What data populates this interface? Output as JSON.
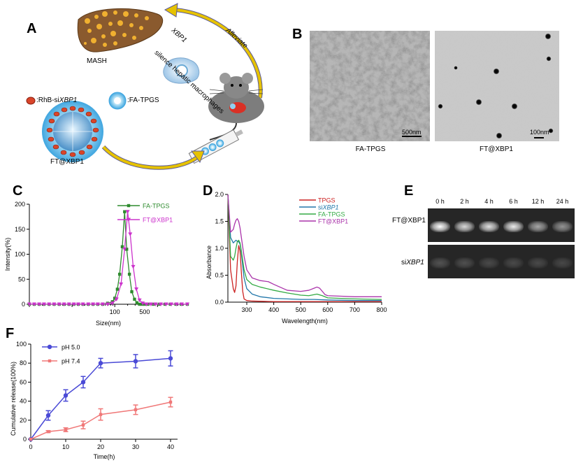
{
  "panels": {
    "A": "A",
    "B": "B",
    "C": "C",
    "D": "D",
    "E": "E",
    "F": "F"
  },
  "schematic": {
    "mash": "MASH",
    "silence": "silence hepatic macrophages",
    "xbp1": "XBP1",
    "alleviate": "Alleviate",
    "legend_rhb": ":RhB-si",
    "legend_rhb_italic": "XBP1",
    "legend_fa": ":FA-TPGS",
    "ft_label": "FT@XBP1",
    "colors": {
      "liver": "#8a5a2e",
      "arrow": "#e6c200",
      "rhb": "#d9452a",
      "micelle": "#8fd0f0"
    }
  },
  "tem": {
    "left_caption": "FA-TPGS",
    "right_caption": "FT@XBP1",
    "left_scale": "500nm",
    "right_scale": "100nm"
  },
  "gel": {
    "row1_label": "FT@XBP1",
    "row2_label_prefix": "si",
    "row2_label_italic": "XBP1",
    "timepoints": [
      "0 h",
      "2 h",
      "4 h",
      "6 h",
      "12 h",
      "24 h"
    ],
    "row1_intensity": [
      1.0,
      0.8,
      0.85,
      0.9,
      0.55,
      0.45
    ],
    "row2_intensity": [
      0.12,
      0.1,
      0.07,
      0.07,
      0.07,
      0.06
    ]
  },
  "chart_data": [
    {
      "panel": "C",
      "type": "line",
      "xlabel": "Size(nm)",
      "ylabel": "Intensity(%)",
      "xscale": "log",
      "xlim": [
        1,
        5000
      ],
      "ylim": [
        0,
        200
      ],
      "xticks": [
        100,
        500
      ],
      "yticks": [
        0,
        50,
        100,
        150,
        200
      ],
      "legend": "top-right",
      "series": [
        {
          "name": "FA-TPGS",
          "color": "#2e8b2e",
          "marker": "square",
          "x": [
            1,
            1.3,
            1.7,
            2.2,
            2.9,
            3.8,
            5,
            6.5,
            8.5,
            11,
            14,
            18,
            24,
            31,
            40,
            52,
            68,
            88,
            100,
            115,
            130,
            150,
            170,
            190,
            220,
            250,
            290,
            330,
            380,
            440,
            500,
            600,
            800,
            1100,
            1500,
            2000,
            2700,
            3600,
            5000
          ],
          "y": [
            0,
            0,
            0,
            0,
            0,
            0,
            0,
            0,
            0,
            0,
            0,
            0,
            0,
            0,
            0,
            0,
            2,
            5,
            12,
            30,
            60,
            115,
            185,
            110,
            60,
            25,
            10,
            3,
            0,
            0,
            0,
            0,
            0,
            0,
            0,
            0,
            0,
            0,
            0
          ]
        },
        {
          "name": "FT@XBP1",
          "color": "#cc33cc",
          "marker": "triangle-down",
          "x": [
            1,
            1.3,
            1.7,
            2.2,
            2.9,
            3.8,
            5,
            6.5,
            8.5,
            11,
            14,
            18,
            24,
            31,
            40,
            52,
            68,
            88,
            110,
            140,
            170,
            200,
            230,
            270,
            320,
            380,
            450,
            550,
            700,
            900,
            1200,
            1600,
            2100,
            2800,
            3700,
            5000
          ],
          "y": [
            0,
            0,
            0,
            0,
            0,
            0,
            0,
            0,
            0,
            0,
            0,
            0,
            0,
            0,
            0,
            0,
            0,
            2,
            10,
            40,
            110,
            185,
            140,
            75,
            30,
            8,
            2,
            0,
            0,
            0,
            0,
            0,
            0,
            0,
            0,
            0
          ]
        }
      ]
    },
    {
      "panel": "D",
      "type": "line",
      "xlabel": "Wavelength(nm)",
      "ylabel": "Absorbance",
      "xlim": [
        230,
        800
      ],
      "ylim": [
        0,
        2.0
      ],
      "xticks": [
        300,
        400,
        500,
        600,
        700,
        800
      ],
      "yticks": [
        0.0,
        0.5,
        1.0,
        1.5,
        2.0
      ],
      "legend": "top-right",
      "series": [
        {
          "name": "TPGS",
          "color": "#cc2222",
          "x": [
            230,
            240,
            250,
            255,
            260,
            265,
            270,
            275,
            280,
            285,
            290,
            300,
            320,
            400,
            500,
            600,
            700,
            800
          ],
          "y": [
            2.0,
            0.6,
            0.25,
            0.18,
            0.3,
            0.75,
            1.05,
            0.95,
            0.55,
            0.2,
            0.06,
            0.03,
            0.02,
            0.01,
            0.01,
            0.01,
            0.01,
            0.01
          ]
        },
        {
          "name": "siXBP1",
          "color": "#2277aa",
          "x": [
            230,
            240,
            250,
            260,
            265,
            270,
            275,
            280,
            290,
            300,
            320,
            350,
            400,
            450,
            500,
            550,
            600,
            700,
            800
          ],
          "y": [
            2.0,
            1.2,
            1.1,
            1.15,
            1.13,
            1.12,
            1.08,
            0.9,
            0.45,
            0.25,
            0.15,
            0.1,
            0.07,
            0.06,
            0.05,
            0.05,
            0.04,
            0.03,
            0.03
          ]
        },
        {
          "name": "FA-TPGS",
          "color": "#33aa44",
          "x": [
            230,
            240,
            250,
            255,
            260,
            265,
            270,
            275,
            280,
            290,
            300,
            320,
            350,
            400,
            450,
            500,
            530,
            560,
            580,
            600,
            650,
            700,
            800
          ],
          "y": [
            2.0,
            0.85,
            0.78,
            0.85,
            1.0,
            1.12,
            1.15,
            1.1,
            0.95,
            0.6,
            0.42,
            0.33,
            0.28,
            0.22,
            0.17,
            0.13,
            0.12,
            0.15,
            0.12,
            0.08,
            0.07,
            0.06,
            0.05
          ]
        },
        {
          "name": "FT@XBP1",
          "color": "#aa33aa",
          "x": [
            230,
            240,
            250,
            255,
            260,
            265,
            270,
            275,
            280,
            290,
            300,
            320,
            350,
            380,
            400,
            450,
            500,
            530,
            550,
            560,
            570,
            590,
            600,
            650,
            700,
            800
          ],
          "y": [
            2.0,
            1.3,
            1.35,
            1.45,
            1.52,
            1.55,
            1.5,
            1.38,
            1.2,
            0.85,
            0.6,
            0.45,
            0.4,
            0.38,
            0.33,
            0.22,
            0.2,
            0.22,
            0.26,
            0.28,
            0.26,
            0.14,
            0.12,
            0.11,
            0.1,
            0.1
          ]
        }
      ],
      "legend_labels": [
        {
          "text": "TPGS"
        },
        {
          "prefix": "si",
          "italic": "XBP1"
        },
        {
          "text": "FA-TPGS"
        },
        {
          "text": "FT@XBP1"
        }
      ]
    },
    {
      "panel": "F",
      "type": "line",
      "xlabel": "Time(h)",
      "ylabel": "Cumulative release(100%)",
      "xlim": [
        0,
        42
      ],
      "ylim": [
        0,
        100
      ],
      "xticks": [
        0,
        10,
        20,
        30,
        40
      ],
      "yticks": [
        0,
        20,
        40,
        60,
        80,
        100
      ],
      "legend": "top-left",
      "series": [
        {
          "name": "pH 5.0",
          "color": "#4a4ad6",
          "marker": "circle",
          "x": [
            0,
            5,
            10,
            15,
            20,
            30,
            40
          ],
          "y": [
            0,
            25,
            46,
            60,
            80,
            82,
            85
          ],
          "err": [
            0,
            5,
            6,
            6,
            5,
            7,
            8
          ]
        },
        {
          "name": "pH 7.4",
          "color": "#f07878",
          "marker": "square",
          "x": [
            0,
            5,
            10,
            15,
            20,
            30,
            40
          ],
          "y": [
            0,
            8,
            10,
            15,
            26,
            31,
            39
          ],
          "err": [
            0,
            1,
            2,
            4,
            6,
            5,
            5
          ]
        }
      ]
    }
  ]
}
